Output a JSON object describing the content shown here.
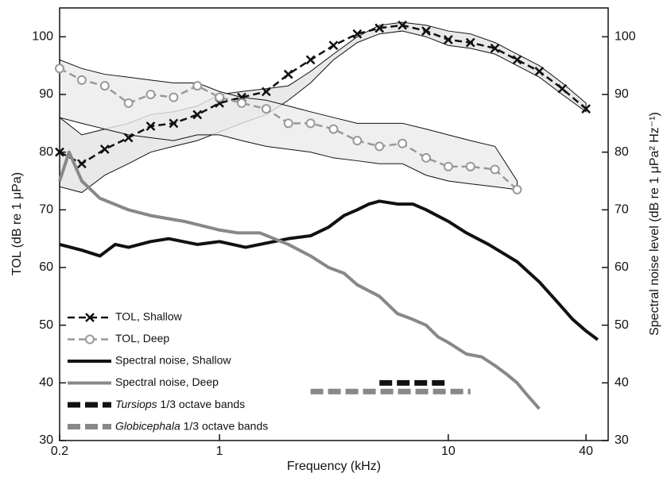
{
  "chart_data": {
    "type": "line",
    "xlabel": "Frequency (kHz)",
    "ylabel": "TOL (dB re 1 μPa)",
    "y2label": "Spectral noise level (dB re 1 μPa² Hz⁻¹)",
    "xscale": "log",
    "xlim": [
      0.2,
      50
    ],
    "xticks": [
      0.2,
      1,
      10,
      40
    ],
    "ylim": [
      30,
      105
    ],
    "yticks": [
      30,
      40,
      50,
      60,
      70,
      80,
      90,
      100
    ],
    "y2lim": [
      30,
      105
    ],
    "y2ticks": [
      30,
      40,
      50,
      60,
      70,
      80,
      90,
      100
    ],
    "legend": "lower left",
    "series": [
      {
        "name": "TOL, Shallow",
        "color": "#111111",
        "marker": "x",
        "dash": "dashed",
        "band_color": "#e4e4e4",
        "x": [
          0.2,
          0.25,
          0.315,
          0.4,
          0.5,
          0.63,
          0.8,
          1,
          1.25,
          1.6,
          2,
          2.5,
          3.15,
          4,
          5,
          6.3,
          8,
          10,
          12.5,
          16,
          20,
          25,
          31.5,
          40
        ],
        "values": [
          80,
          78,
          80.5,
          82.5,
          84.5,
          85,
          86.5,
          88.5,
          89.5,
          90.5,
          93.5,
          96,
          98.5,
          100.5,
          101.5,
          102,
          101,
          99.5,
          99,
          98,
          96,
          94,
          91,
          87.5
        ],
        "band_lower": [
          74,
          73,
          76,
          78,
          80,
          81,
          82,
          83.5,
          85,
          86.5,
          89,
          92,
          96,
          99,
          100.5,
          101,
          100,
          98.5,
          98,
          97,
          95,
          93,
          90,
          87
        ],
        "band_upper": [
          86,
          83,
          84,
          85,
          86.5,
          87,
          88,
          90,
          90.5,
          91,
          91.5,
          94,
          97,
          100,
          102,
          102.5,
          102,
          101,
          100.5,
          99,
          97,
          95,
          92,
          88.5
        ]
      },
      {
        "name": "TOL, Deep",
        "color": "#999999",
        "marker": "o",
        "dash": "dashed",
        "band_color": "#ebebeb",
        "x": [
          0.2,
          0.25,
          0.315,
          0.4,
          0.5,
          0.63,
          0.8,
          1,
          1.25,
          1.6,
          2,
          2.5,
          3.15,
          4,
          5,
          6.3,
          8,
          10,
          12.5,
          16,
          20
        ],
        "values": [
          94.5,
          92.5,
          91.5,
          88.5,
          90,
          89.5,
          91.5,
          89.5,
          88.5,
          87.5,
          85,
          85,
          84,
          82,
          81,
          81.5,
          79,
          77.5,
          77.5,
          77,
          73.5
        ],
        "band_lower": [
          86,
          85,
          84,
          83,
          82.5,
          82,
          83,
          83,
          82,
          81,
          80.5,
          80,
          79,
          78.5,
          78,
          78,
          76,
          75,
          74.5,
          74,
          73.5
        ],
        "band_upper": [
          96,
          94.5,
          93.5,
          93,
          92.5,
          92,
          92,
          90.5,
          89.5,
          89,
          88,
          87,
          86,
          85,
          85,
          85,
          84,
          83,
          82,
          81,
          75
        ]
      },
      {
        "name": "Spectral noise, Shallow",
        "color": "#111111",
        "dash": "solid",
        "axis": "y2",
        "x": [
          0.2,
          0.25,
          0.3,
          0.35,
          0.4,
          0.5,
          0.6,
          0.8,
          1,
          1.3,
          1.5,
          2,
          2.5,
          3,
          3.5,
          4,
          4.5,
          5,
          6,
          7,
          8,
          10,
          12,
          15,
          20,
          25,
          30,
          35,
          40,
          45
        ],
        "values": [
          64,
          63,
          62,
          64,
          63.5,
          64.5,
          65,
          64,
          64.5,
          63.5,
          64,
          65,
          65.5,
          67,
          69,
          70,
          71,
          71.5,
          71,
          71,
          70,
          68,
          66,
          64,
          61,
          57.5,
          54,
          51,
          49,
          47.5
        ]
      },
      {
        "name": "Spectral noise, Deep",
        "color": "#888888",
        "dash": "solid",
        "axis": "y2",
        "x": [
          0.2,
          0.22,
          0.25,
          0.3,
          0.4,
          0.5,
          0.7,
          1,
          1.2,
          1.5,
          2,
          2.5,
          3,
          3.5,
          4,
          5,
          6,
          7,
          8,
          9,
          10,
          12,
          14,
          16,
          18,
          20,
          22,
          25
        ],
        "values": [
          75,
          80,
          75,
          72,
          70,
          69,
          68,
          66.5,
          66,
          66,
          64,
          62,
          60,
          59,
          57,
          55,
          52,
          51,
          50,
          48,
          47,
          45,
          44.5,
          43,
          41.5,
          40,
          38,
          35.5
        ]
      },
      {
        "name": "Tursiops 1/3 octave bands",
        "color": "#111111",
        "dash": "band",
        "x": [
          5,
          10
        ],
        "values": [
          40,
          40
        ]
      },
      {
        "name": "Globicephala 1/3 octave bands",
        "color": "#888888",
        "dash": "band",
        "x": [
          2.5,
          12.5
        ],
        "values": [
          38.5,
          38.5
        ]
      }
    ]
  }
}
